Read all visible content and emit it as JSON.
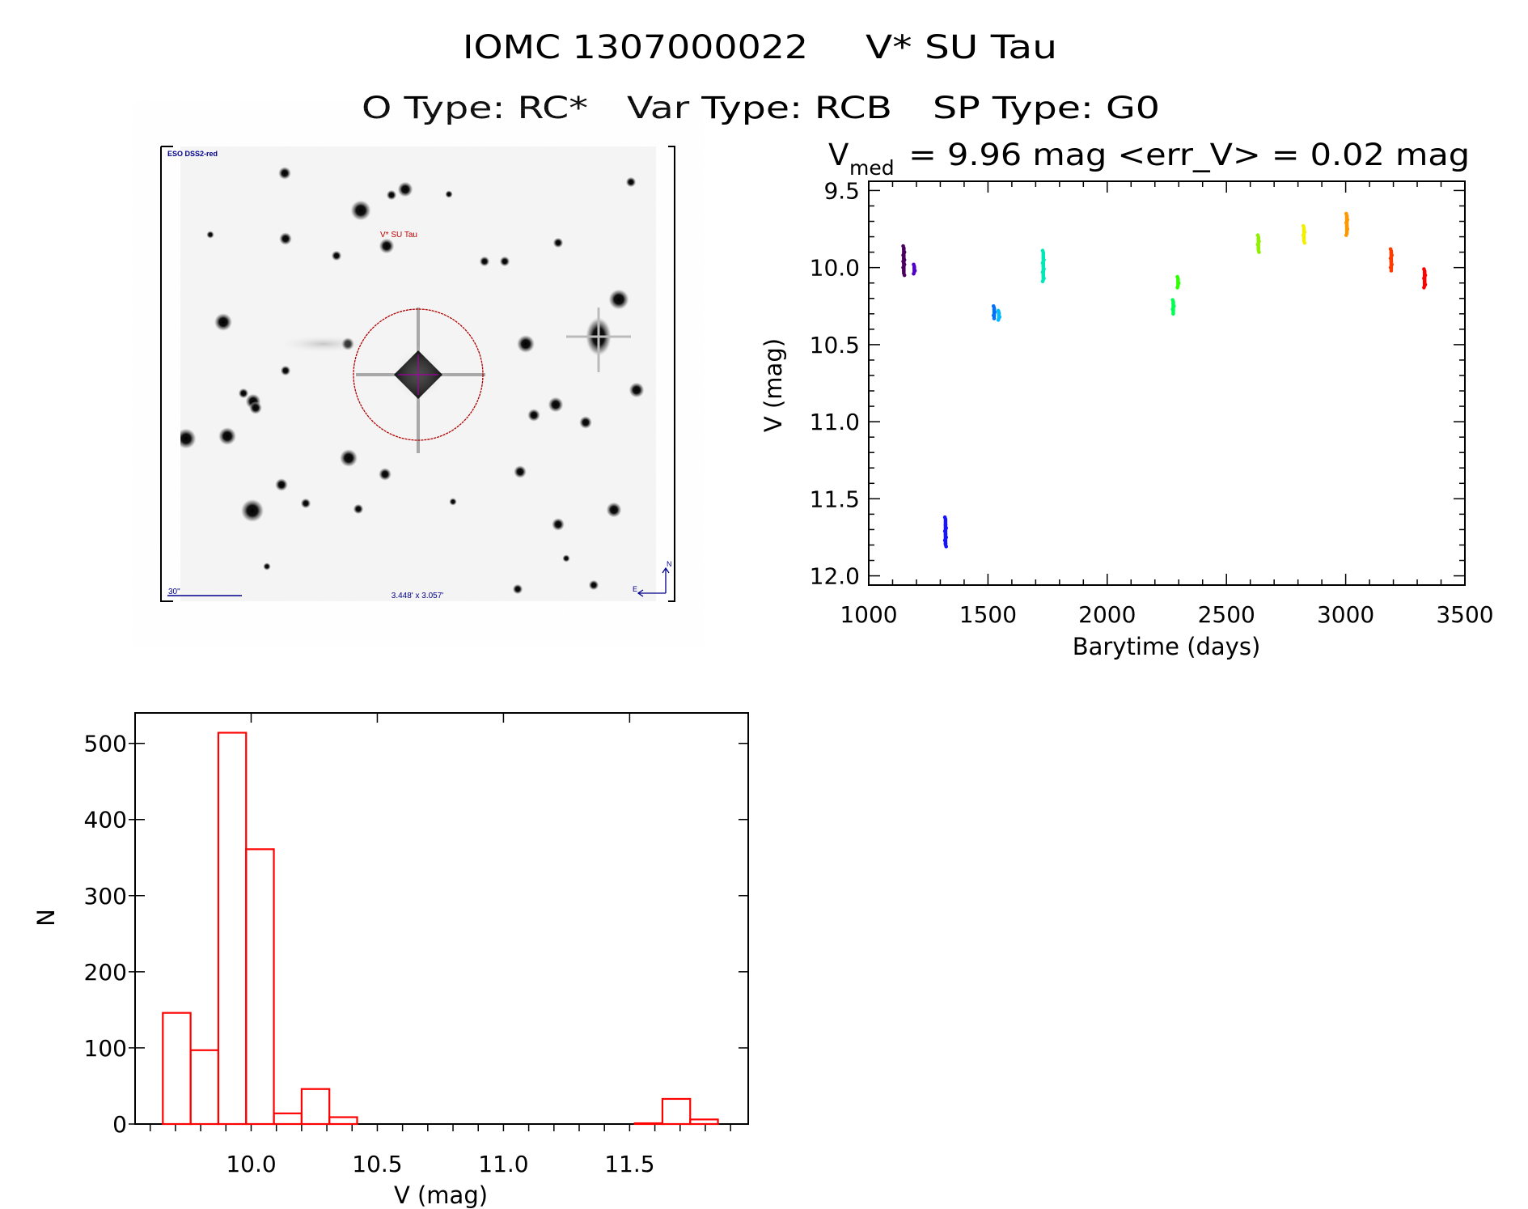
{
  "title": {
    "object_id": "IOMC 1307000022",
    "object_name": "V* SU Tau",
    "o_type": "O Type: RC*",
    "var_type": "Var Type: RCB",
    "sp_type": "SP Type: G0"
  },
  "image_panel": {
    "survey_label": "ESO DSS2-red",
    "target_label": "V* SU Tau",
    "scale_bar_label": "30\"",
    "field_size_label": "3.448' x 3.057'",
    "north_label": "N",
    "east_label": "E",
    "label_color": "#00008b",
    "target_color": "#c00000"
  },
  "chart_data": [
    {
      "type": "scatter",
      "title_v": "V",
      "title_sub": "med",
      "title_rest": " = 9.96 mag <err_V> = 0.02 mag",
      "xlabel": "Barytime (days)",
      "ylabel": "V (mag)",
      "xlim": [
        1000,
        3500
      ],
      "ylim": [
        12.06,
        9.44
      ],
      "y_inverted": true,
      "xticks": [
        "1000",
        "1500",
        "2000",
        "2500",
        "3000",
        "3500"
      ],
      "yticks": [
        "9.5",
        "10.0",
        "10.5",
        "11.0",
        "11.5",
        "12.0"
      ],
      "grid": false,
      "series": [
        {
          "x": 1147,
          "color": "#4b0060",
          "v": [
            9.86,
            9.88,
            9.9,
            9.92,
            9.94,
            9.95,
            9.96,
            9.97,
            9.98,
            10.0,
            10.02,
            10.05
          ]
        },
        {
          "x": 1191,
          "color": "#5000c8",
          "v": [
            9.98,
            10.0,
            10.02,
            10.04
          ]
        },
        {
          "x": 1322,
          "color": "#1414ff",
          "v": [
            11.62,
            11.67,
            11.69,
            11.71,
            11.73,
            11.75,
            11.77,
            11.79,
            11.81
          ]
        },
        {
          "x": 1526,
          "color": "#0070ff",
          "v": [
            10.25,
            10.27,
            10.29,
            10.31,
            10.33
          ]
        },
        {
          "x": 1546,
          "color": "#00b8ff",
          "v": [
            10.28,
            10.3,
            10.32,
            10.34
          ]
        },
        {
          "x": 1732,
          "color": "#00e8b8",
          "v": [
            9.89,
            9.93,
            9.95,
            9.97,
            9.99,
            10.01,
            10.03,
            10.05,
            10.07,
            10.09
          ]
        },
        {
          "x": 2277,
          "color": "#00ff50",
          "v": [
            10.21,
            10.23,
            10.25,
            10.27,
            10.3
          ]
        },
        {
          "x": 2297,
          "color": "#30ff00",
          "v": [
            10.06,
            10.08,
            10.1,
            10.13
          ]
        },
        {
          "x": 2634,
          "color": "#90f000",
          "v": [
            9.79,
            9.81,
            9.83,
            9.85,
            9.87,
            9.9
          ]
        },
        {
          "x": 2825,
          "color": "#f0f000",
          "v": [
            9.73,
            9.75,
            9.77,
            9.79,
            9.81,
            9.84
          ]
        },
        {
          "x": 3005,
          "color": "#ff9800",
          "v": [
            9.65,
            9.67,
            9.69,
            9.71,
            9.73,
            9.75,
            9.79
          ]
        },
        {
          "x": 3191,
          "color": "#ff3c00",
          "v": [
            9.88,
            9.9,
            9.92,
            9.94,
            9.96,
            9.98,
            10.0,
            10.02
          ]
        },
        {
          "x": 3331,
          "color": "#ff0000",
          "v": [
            10.01,
            10.03,
            10.05,
            10.07,
            10.09,
            10.11,
            10.13
          ]
        }
      ]
    },
    {
      "type": "bar",
      "xlabel": "V (mag)",
      "ylabel": "N",
      "xlim": [
        9.54,
        11.97
      ],
      "ylim": [
        0,
        540
      ],
      "xticks": [
        "10.0",
        "10.5",
        "11.0",
        "11.5"
      ],
      "yticks": [
        "0",
        "100",
        "200",
        "300",
        "400",
        "500"
      ],
      "bin_start": 9.65,
      "bin_width": 0.11,
      "values": [
        146,
        97,
        514,
        361,
        14,
        46,
        9,
        0,
        0,
        0,
        0,
        0,
        0,
        0,
        0,
        0,
        0,
        1,
        33,
        6
      ],
      "color": "#ff0000",
      "grid": false
    }
  ]
}
